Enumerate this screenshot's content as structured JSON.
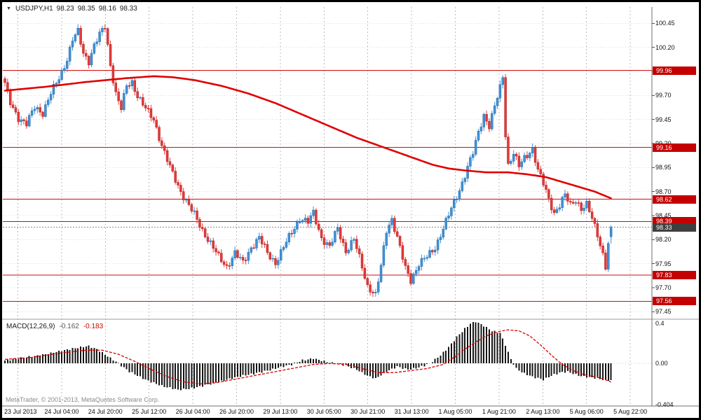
{
  "header": {
    "collapse_icon": "▼",
    "symbol_timeframe": "USDJPY,H1",
    "open": "98.23",
    "high": "98.35",
    "low": "98.16",
    "close": "98.33"
  },
  "macd_header": {
    "name": "MACD(12,26,9)",
    "main_value": "-0.162",
    "signal_value": "-0.183"
  },
  "footer": {
    "copyright": "MetaTrader, © 2001-2013, MetaQuotes Software Corp."
  },
  "price_axis": {
    "ticks": [
      "100.45",
      "100.20",
      "99.95",
      "99.70",
      "99.45",
      "99.20",
      "98.95",
      "98.70",
      "98.45",
      "98.20",
      "97.95",
      "97.70",
      "97.45"
    ],
    "level_tags": [
      "99.96",
      "99.16",
      "98.62",
      "98.39",
      "97.83",
      "97.56"
    ],
    "current_tag": "98.33"
  },
  "macd_axis": {
    "ticks": [
      "0.4",
      "0.00",
      "-0.404"
    ],
    "tick_values": [
      0.4,
      0.0,
      -0.404
    ]
  },
  "time_axis": {
    "labels": [
      "23 Jul 2013",
      "24 Jul 04:00",
      "24 Jul 20:00",
      "25 Jul 12:00",
      "26 Jul 04:00",
      "26 Jul 20:00",
      "29 Jul 13:00",
      "30 Jul 05:00",
      "30 Jul 21:00",
      "31 Jul 13:00",
      "1 Aug 05:00",
      "1 Aug 21:00",
      "2 Aug 13:00",
      "5 Aug 06:00",
      "5 Aug 22:00"
    ]
  },
  "colors": {
    "bg": "#ffffff",
    "frame": "#000000",
    "grid": "#d6d6d6",
    "vgrid": "#bdbdbd",
    "bull": "#4191d6",
    "bull_stroke": "#2a6da8",
    "bear": "#e23b3b",
    "bear_stroke": "#b32020",
    "ma": "#e00000",
    "level_line": "#cf0d0d",
    "level_tag_bg": "#c40000",
    "current_tag_bg": "#3f3f3f",
    "hist": "#141414",
    "signal": "#dd0000",
    "text": "#111111",
    "muted": "#8a8a8a"
  },
  "chart_data": [
    {
      "type": "candlestick",
      "title": "USDJPY,H1",
      "current_ohlc": {
        "open": 98.23,
        "high": 98.35,
        "low": 98.16,
        "close": 98.33
      },
      "y_range": [
        97.38,
        100.62
      ],
      "x_labels": [
        "23 Jul 2013",
        "24 Jul 04:00",
        "24 Jul 20:00",
        "25 Jul 12:00",
        "26 Jul 04:00",
        "26 Jul 20:00",
        "29 Jul 13:00",
        "30 Jul 05:00",
        "30 Jul 21:00",
        "31 Jul 13:00",
        "1 Aug 05:00",
        "1 Aug 21:00",
        "2 Aug 13:00",
        "5 Aug 06:00",
        "5 Aug 22:00"
      ],
      "candle_count": 225,
      "horizontal_levels": [
        99.96,
        99.16,
        98.62,
        98.39,
        97.83,
        97.56
      ],
      "current_price": 98.33,
      "close_anchors": [
        [
          0,
          99.82
        ],
        [
          2,
          99.62
        ],
        [
          5,
          99.47
        ],
        [
          8,
          99.4
        ],
        [
          11,
          99.58
        ],
        [
          14,
          99.52
        ],
        [
          17,
          99.72
        ],
        [
          20,
          99.88
        ],
        [
          23,
          100.08
        ],
        [
          25,
          100.28
        ],
        [
          27,
          100.36
        ],
        [
          29,
          100.14
        ],
        [
          31,
          100.06
        ],
        [
          33,
          100.22
        ],
        [
          35,
          100.33
        ],
        [
          37,
          100.42
        ],
        [
          39,
          100.02
        ],
        [
          41,
          99.72
        ],
        [
          43,
          99.56
        ],
        [
          45,
          99.8
        ],
        [
          47,
          99.84
        ],
        [
          49,
          99.7
        ],
        [
          52,
          99.56
        ],
        [
          55,
          99.45
        ],
        [
          58,
          99.18
        ],
        [
          61,
          98.95
        ],
        [
          64,
          98.76
        ],
        [
          67,
          98.6
        ],
        [
          70,
          98.46
        ],
        [
          73,
          98.3
        ],
        [
          76,
          98.16
        ],
        [
          79,
          98.02
        ],
        [
          82,
          97.92
        ],
        [
          85,
          98.06
        ],
        [
          88,
          97.96
        ],
        [
          91,
          98.12
        ],
        [
          94,
          98.22
        ],
        [
          97,
          98.06
        ],
        [
          100,
          97.96
        ],
        [
          103,
          98.12
        ],
        [
          106,
          98.28
        ],
        [
          109,
          98.42
        ],
        [
          112,
          98.38
        ],
        [
          114,
          98.48
        ],
        [
          117,
          98.22
        ],
        [
          120,
          98.12
        ],
        [
          123,
          98.32
        ],
        [
          126,
          98.08
        ],
        [
          129,
          98.2
        ],
        [
          132,
          97.92
        ],
        [
          134,
          97.72
        ],
        [
          137,
          97.62
        ],
        [
          139,
          97.92
        ],
        [
          141,
          98.3
        ],
        [
          143,
          98.42
        ],
        [
          145,
          98.22
        ],
        [
          148,
          97.9
        ],
        [
          150,
          97.78
        ],
        [
          153,
          97.95
        ],
        [
          156,
          98.02
        ],
        [
          159,
          98.12
        ],
        [
          162,
          98.32
        ],
        [
          165,
          98.52
        ],
        [
          168,
          98.72
        ],
        [
          171,
          98.95
        ],
        [
          173,
          99.1
        ],
        [
          175,
          99.32
        ],
        [
          177,
          99.5
        ],
        [
          179,
          99.38
        ],
        [
          181,
          99.58
        ],
        [
          183,
          99.78
        ],
        [
          184,
          99.9
        ],
        [
          185,
          99.3
        ],
        [
          186,
          98.98
        ],
        [
          188,
          99.1
        ],
        [
          190,
          98.96
        ],
        [
          192,
          99.05
        ],
        [
          195,
          99.15
        ],
        [
          197,
          98.92
        ],
        [
          199,
          98.78
        ],
        [
          201,
          98.62
        ],
        [
          203,
          98.48
        ],
        [
          205,
          98.56
        ],
        [
          207,
          98.66
        ],
        [
          209,
          98.56
        ],
        [
          211,
          98.62
        ],
        [
          213,
          98.52
        ],
        [
          215,
          98.56
        ],
        [
          217,
          98.42
        ],
        [
          219,
          98.26
        ],
        [
          221,
          98.05
        ],
        [
          222,
          97.92
        ],
        [
          223,
          98.15
        ],
        [
          224,
          98.33
        ]
      ],
      "ma_line": {
        "name": "moving-average",
        "color": "#e00000",
        "anchors": [
          [
            0,
            99.75
          ],
          [
            15,
            99.79
          ],
          [
            30,
            99.84
          ],
          [
            45,
            99.88
          ],
          [
            55,
            99.9
          ],
          [
            62,
            99.89
          ],
          [
            70,
            99.86
          ],
          [
            80,
            99.8
          ],
          [
            90,
            99.72
          ],
          [
            100,
            99.62
          ],
          [
            110,
            99.5
          ],
          [
            120,
            99.38
          ],
          [
            130,
            99.26
          ],
          [
            138,
            99.18
          ],
          [
            146,
            99.1
          ],
          [
            152,
            99.04
          ],
          [
            158,
            98.98
          ],
          [
            164,
            98.94
          ],
          [
            170,
            98.92
          ],
          [
            178,
            98.9
          ],
          [
            186,
            98.9
          ],
          [
            193,
            98.88
          ],
          [
            200,
            98.85
          ],
          [
            206,
            98.8
          ],
          [
            212,
            98.75
          ],
          [
            218,
            98.7
          ],
          [
            224,
            98.63
          ]
        ]
      }
    },
    {
      "type": "macd",
      "title": "MACD(12,26,9)",
      "y_range": [
        -0.404,
        0.4
      ],
      "main_last": -0.162,
      "signal_last": -0.183,
      "histogram_anchors": [
        [
          0,
          0.03
        ],
        [
          8,
          0.06
        ],
        [
          15,
          0.09
        ],
        [
          22,
          0.13
        ],
        [
          28,
          0.16
        ],
        [
          31,
          0.17
        ],
        [
          34,
          0.14
        ],
        [
          38,
          0.07
        ],
        [
          42,
          0.0
        ],
        [
          46,
          -0.08
        ],
        [
          52,
          -0.16
        ],
        [
          58,
          -0.22
        ],
        [
          64,
          -0.26
        ],
        [
          70,
          -0.24
        ],
        [
          76,
          -0.2
        ],
        [
          82,
          -0.16
        ],
        [
          88,
          -0.12
        ],
        [
          94,
          -0.09
        ],
        [
          100,
          -0.05
        ],
        [
          106,
          -0.01
        ],
        [
          110,
          0.03
        ],
        [
          114,
          0.05
        ],
        [
          118,
          0.02
        ],
        [
          122,
          0.0
        ],
        [
          126,
          -0.02
        ],
        [
          130,
          -0.06
        ],
        [
          134,
          -0.12
        ],
        [
          137,
          -0.15
        ],
        [
          141,
          -0.08
        ],
        [
          145,
          -0.03
        ],
        [
          149,
          -0.06
        ],
        [
          153,
          -0.04
        ],
        [
          157,
          0.0
        ],
        [
          161,
          0.08
        ],
        [
          164,
          0.16
        ],
        [
          167,
          0.26
        ],
        [
          170,
          0.34
        ],
        [
          172,
          0.39
        ],
        [
          174,
          0.41
        ],
        [
          177,
          0.37
        ],
        [
          180,
          0.32
        ],
        [
          183,
          0.3
        ],
        [
          185,
          0.18
        ],
        [
          187,
          0.04
        ],
        [
          189,
          -0.05
        ],
        [
          192,
          -0.1
        ],
        [
          195,
          -0.13
        ],
        [
          199,
          -0.16
        ],
        [
          202,
          -0.12
        ],
        [
          205,
          -0.09
        ],
        [
          208,
          -0.08
        ],
        [
          211,
          -0.11
        ],
        [
          214,
          -0.13
        ],
        [
          217,
          -0.14
        ],
        [
          220,
          -0.15
        ],
        [
          222,
          -0.165
        ],
        [
          224,
          -0.162
        ]
      ],
      "signal_anchors": [
        [
          0,
          0.04
        ],
        [
          10,
          0.06
        ],
        [
          20,
          0.1
        ],
        [
          30,
          0.13
        ],
        [
          36,
          0.13
        ],
        [
          42,
          0.09
        ],
        [
          48,
          0.02
        ],
        [
          54,
          -0.06
        ],
        [
          60,
          -0.13
        ],
        [
          66,
          -0.18
        ],
        [
          72,
          -0.2
        ],
        [
          78,
          -0.19
        ],
        [
          84,
          -0.16
        ],
        [
          90,
          -0.13
        ],
        [
          96,
          -0.1
        ],
        [
          102,
          -0.07
        ],
        [
          108,
          -0.04
        ],
        [
          114,
          -0.01
        ],
        [
          120,
          0.0
        ],
        [
          126,
          -0.01
        ],
        [
          132,
          -0.05
        ],
        [
          138,
          -0.09
        ],
        [
          144,
          -0.09
        ],
        [
          150,
          -0.07
        ],
        [
          156,
          -0.05
        ],
        [
          162,
          -0.01
        ],
        [
          166,
          0.06
        ],
        [
          170,
          0.14
        ],
        [
          174,
          0.21
        ],
        [
          178,
          0.27
        ],
        [
          182,
          0.31
        ],
        [
          186,
          0.33
        ],
        [
          190,
          0.32
        ],
        [
          194,
          0.27
        ],
        [
          198,
          0.18
        ],
        [
          202,
          0.08
        ],
        [
          206,
          -0.01
        ],
        [
          210,
          -0.07
        ],
        [
          214,
          -0.11
        ],
        [
          218,
          -0.13
        ],
        [
          221,
          -0.15
        ],
        [
          224,
          -0.183
        ]
      ]
    }
  ]
}
